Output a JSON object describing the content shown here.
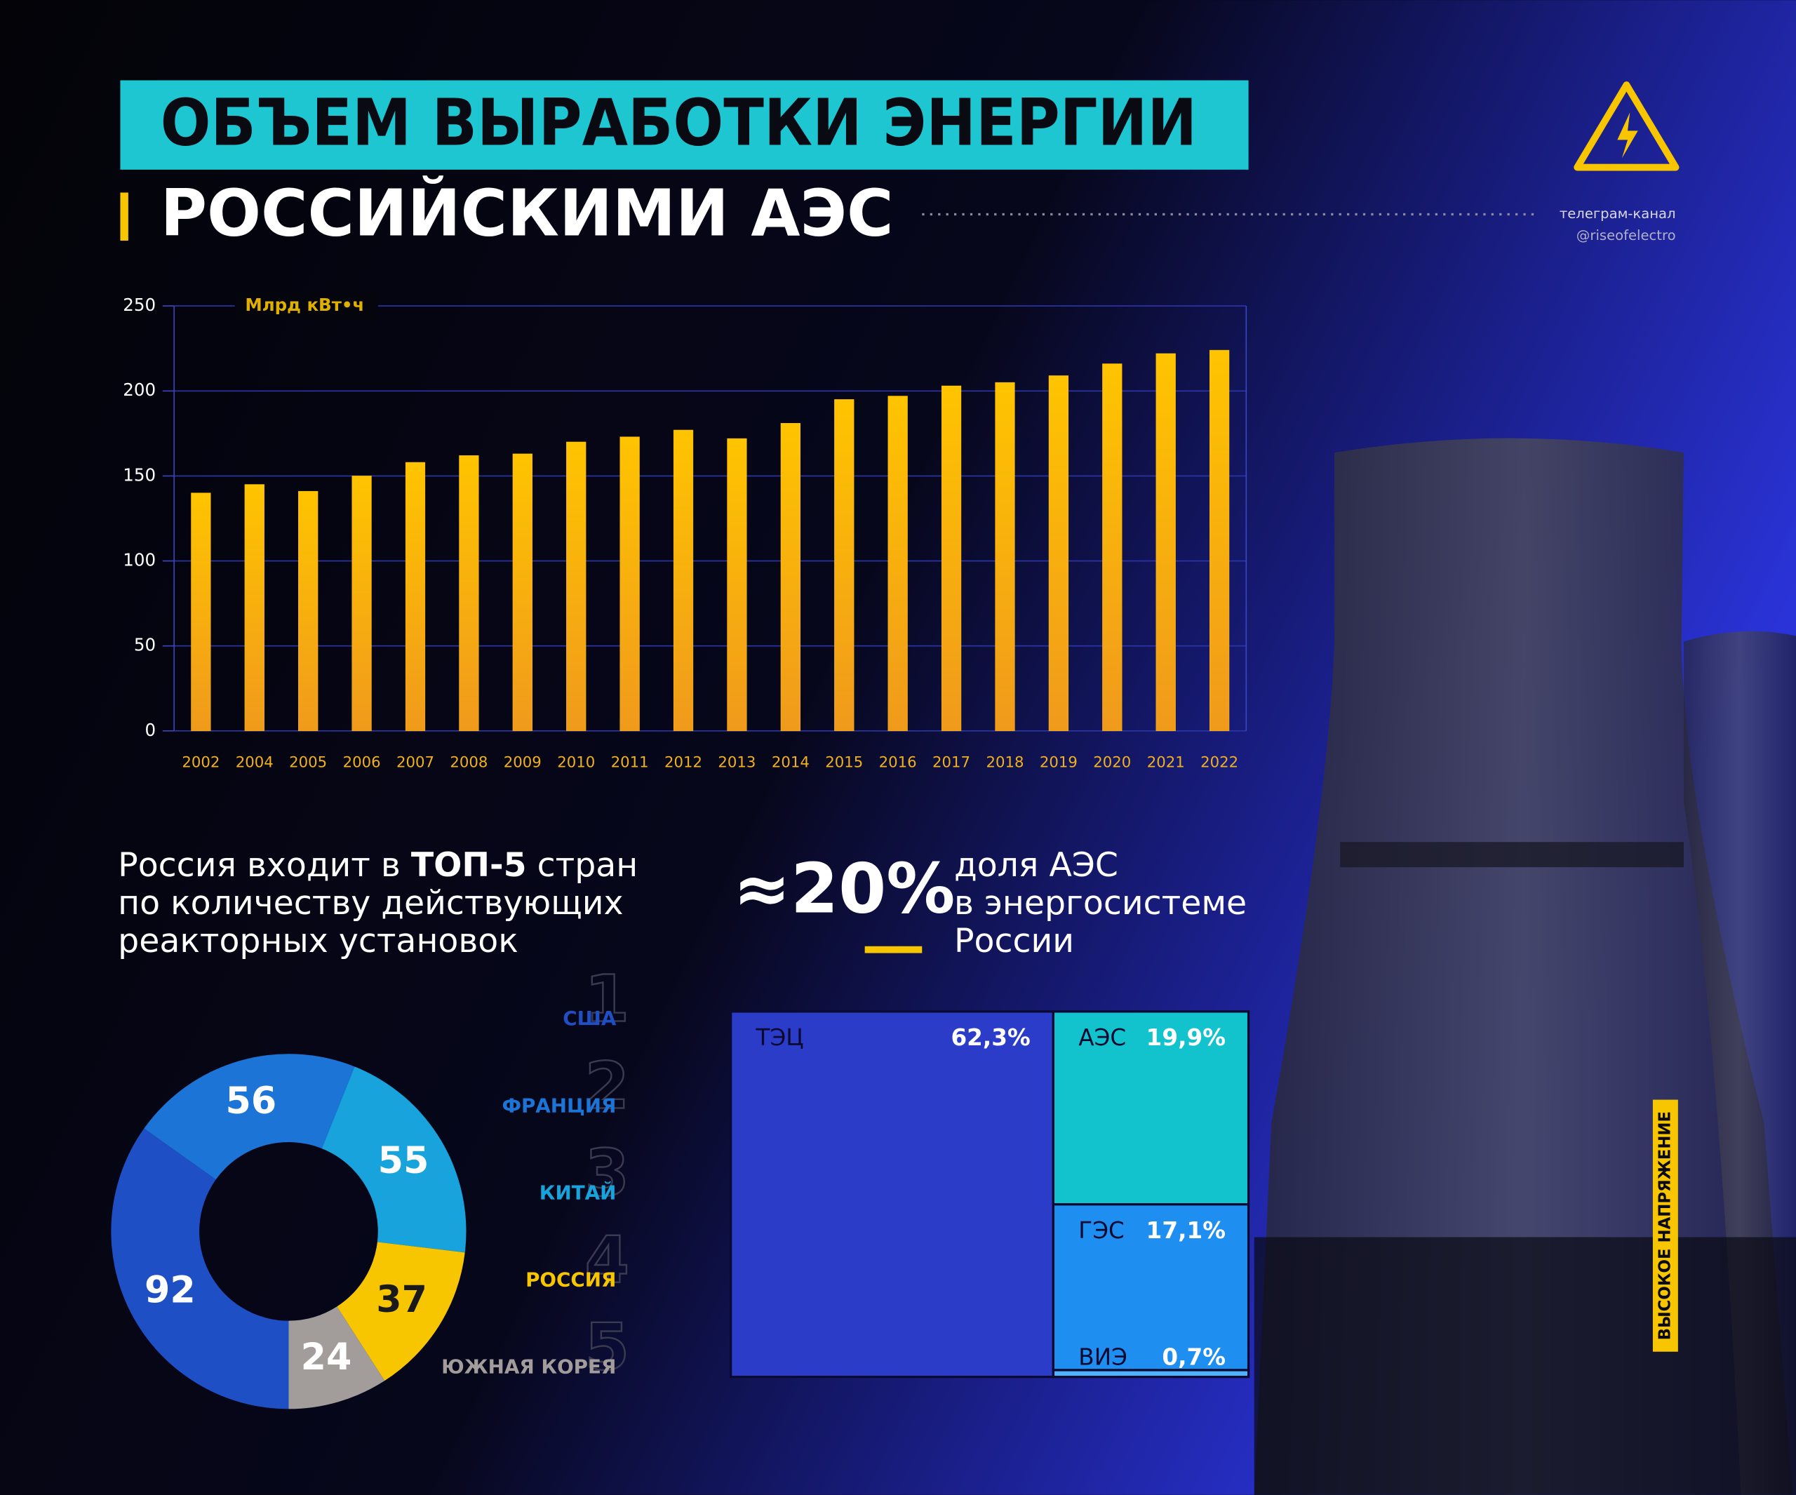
{
  "header": {
    "title_line1": "ОБЪЕМ ВЫРАБОТКИ ЭНЕРГИИ",
    "title_line2": "РОССИЙСКИМИ АЭС",
    "channel_label": "телеграм-канал",
    "channel_handle": "@riseofelectro",
    "brand": "ВЫСОКОЕ НАПРЯЖЕНИЕ"
  },
  "chart_data": [
    {
      "type": "bar",
      "y_label": "Млрд кВт•ч",
      "categories": [
        "2002",
        "2004",
        "2005",
        "2006",
        "2007",
        "2008",
        "2009",
        "2010",
        "2011",
        "2012",
        "2013",
        "2014",
        "2015",
        "2016",
        "2017",
        "2018",
        "2019",
        "2020",
        "2021",
        "2022"
      ],
      "values": [
        140,
        145,
        141,
        150,
        158,
        162,
        163,
        170,
        173,
        177,
        172,
        181,
        195,
        197,
        203,
        205,
        209,
        216,
        222,
        224
      ],
      "color": "#ffc000",
      "ylim": [
        0,
        250
      ],
      "yticks": [
        0,
        50,
        100,
        150,
        200,
        250
      ],
      "grid": true
    },
    {
      "type": "donut",
      "title_before": "Россия входит в",
      "title_bold": "ТОП-5",
      "title_after": "стран",
      "title_line2": "по количеству действующих",
      "title_line3": "реакторных установок",
      "categories": [
        "США",
        "ФРАНЦИЯ",
        "КИТАЙ",
        "РОССИЯ",
        "ЮЖНАЯ КОРЕЯ"
      ],
      "ranks": [
        1,
        2,
        3,
        4,
        5
      ],
      "values": [
        92,
        56,
        55,
        37,
        24
      ],
      "colors": [
        "#1f4fc4",
        "#1c74d6",
        "#19a3dc",
        "#f7c600",
        "#a29d9b"
      ]
    },
    {
      "type": "treemap",
      "title": "≈20%",
      "subtitle_line1": "доля АЭС",
      "subtitle_line2": "в энергосистеме",
      "subtitle_line3": "России",
      "categories": [
        "ТЭЦ",
        "АЭС",
        "ГЭС",
        "ВИЭ"
      ],
      "values": [
        62.3,
        19.9,
        17.1,
        0.7
      ],
      "value_labels": [
        "62,3%",
        "19,9%",
        "17,1%",
        "0,7%"
      ],
      "colors": [
        "#2a3cc8",
        "#12c2cc",
        "#1e8ef0",
        "#4cb4ff"
      ]
    }
  ]
}
